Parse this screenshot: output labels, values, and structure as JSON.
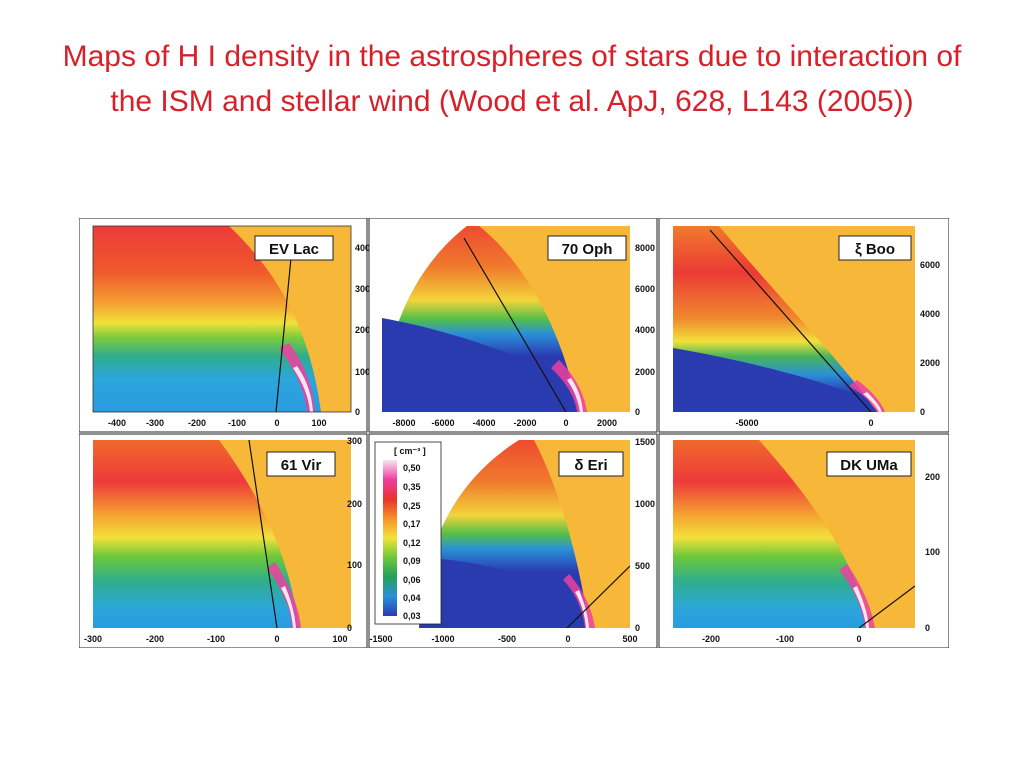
{
  "title": "Maps of H I density in the astrospheres of stars due to interaction of the ISM and stellar wind (Wood et al. ApJ, 628, L143 (2005))",
  "colors": {
    "title": "#d8202a",
    "low": "#2a3bb0",
    "high": "#f4a7c8",
    "background_zone": "#f7b83a"
  },
  "colorbar": {
    "unit": "[ cm⁻³ ]",
    "levels": [
      "0,50",
      "0,35",
      "0,25",
      "0,17",
      "0,12",
      "0,09",
      "0,06",
      "0,04",
      "0,03"
    ],
    "colors": [
      "#f6e6f0",
      "#ee3fa0",
      "#e8322a",
      "#f5922a",
      "#f4e23a",
      "#6cc83a",
      "#24a05a",
      "#2a90d8",
      "#2a3bb0"
    ]
  },
  "chart_data": {
    "type": "heatmap",
    "panels": [
      {
        "name": "EV Lac",
        "xticks": [
          "-400",
          "-300",
          "-200",
          "-100",
          "0",
          "100"
        ],
        "yticks": [
          "0",
          "100",
          "200",
          "300",
          "400"
        ]
      },
      {
        "name": "70 Oph",
        "xticks": [
          "-8000",
          "-6000",
          "-4000",
          "-2000",
          "0",
          "2000"
        ],
        "yticks": [
          "0",
          "2000",
          "4000",
          "6000",
          "8000"
        ]
      },
      {
        "name": "ξ Boo",
        "xticks": [
          "-5000",
          "0"
        ],
        "yticks": [
          "0",
          "2000",
          "4000",
          "6000"
        ]
      },
      {
        "name": "61 Vir",
        "xticks": [
          "-300",
          "-200",
          "-100",
          "0",
          "100"
        ],
        "yticks": [
          "0",
          "100",
          "200",
          "300"
        ]
      },
      {
        "name": "δ Eri",
        "xticks": [
          "-1500",
          "-1000",
          "-500",
          "0",
          "500"
        ],
        "yticks": [
          "0",
          "500",
          "1000",
          "1500"
        ]
      },
      {
        "name": "DK UMa",
        "xticks": [
          "-200",
          "-100",
          "0"
        ],
        "yticks": [
          "0",
          "100",
          "200"
        ]
      }
    ]
  }
}
